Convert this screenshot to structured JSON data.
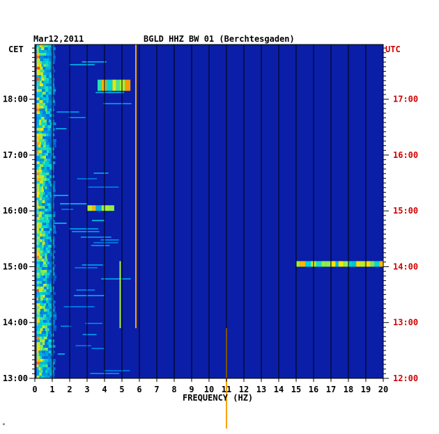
{
  "chart_data": {
    "type": "heatmap",
    "title_date": "Mar12,2011",
    "title_station": "BGLD HHZ BW 01 (Berchtesgaden)",
    "xlabel": "FREQUENCY (HZ)",
    "xlim": [
      0,
      20
    ],
    "x_ticks": [
      "0",
      "1",
      "2",
      "3",
      "4",
      "5",
      "6",
      "7",
      "8",
      "9",
      "10",
      "11",
      "12",
      "13",
      "14",
      "15",
      "16",
      "17",
      "18",
      "19",
      "20"
    ],
    "left_axis_label": "CET",
    "right_axis_label": "UTC",
    "left_time_ticks": [
      {
        "label": "18:00",
        "hour": 18
      },
      {
        "label": "17:00",
        "hour": 17
      },
      {
        "label": "16:00",
        "hour": 16
      },
      {
        "label": "15:00",
        "hour": 15
      },
      {
        "label": "14:00",
        "hour": 14
      },
      {
        "label": "13:00",
        "hour": 13
      }
    ],
    "right_time_ticks": [
      {
        "label": "17:00",
        "hour": 17
      },
      {
        "label": "16:00",
        "hour": 16
      },
      {
        "label": "15:00",
        "hour": 15
      },
      {
        "label": "14:00",
        "hour": 14
      },
      {
        "label": "13:00",
        "hour": 13
      },
      {
        "label": "12:00",
        "hour": 12
      }
    ],
    "cet_range": [
      13.0,
      18.98
    ],
    "colors": {
      "background": "#0a1ea8",
      "grid": "#000000",
      "utc_label": "#d00000"
    },
    "features": [
      {
        "desc": "strong low-frequency band",
        "freq_range": [
          0.1,
          1.0
        ],
        "time_range": [
          13.0,
          18.98
        ],
        "intensity": "high"
      },
      {
        "desc": "narrow line",
        "freq": 5.8,
        "time_range": [
          13.9,
          18.98
        ],
        "intensity": "high"
      },
      {
        "desc": "narrow line",
        "freq": 4.9,
        "time_range": [
          13.9,
          15.1
        ],
        "intensity": "medium"
      },
      {
        "desc": "narrow line",
        "freq": 11.0,
        "time_range": [
          12.1,
          13.9
        ],
        "intensity": "high"
      },
      {
        "desc": "burst",
        "freq_range": [
          3.6,
          5.4
        ],
        "time_range": [
          18.15,
          18.35
        ],
        "intensity": "medium"
      },
      {
        "desc": "burst",
        "freq_range": [
          3.0,
          4.5
        ],
        "time_range": [
          16.0,
          16.1
        ],
        "intensity": "medium"
      },
      {
        "desc": "band",
        "freq_range": [
          15.0,
          20.0
        ],
        "time_range": [
          15.0,
          15.1
        ],
        "intensity": "medium"
      }
    ]
  }
}
